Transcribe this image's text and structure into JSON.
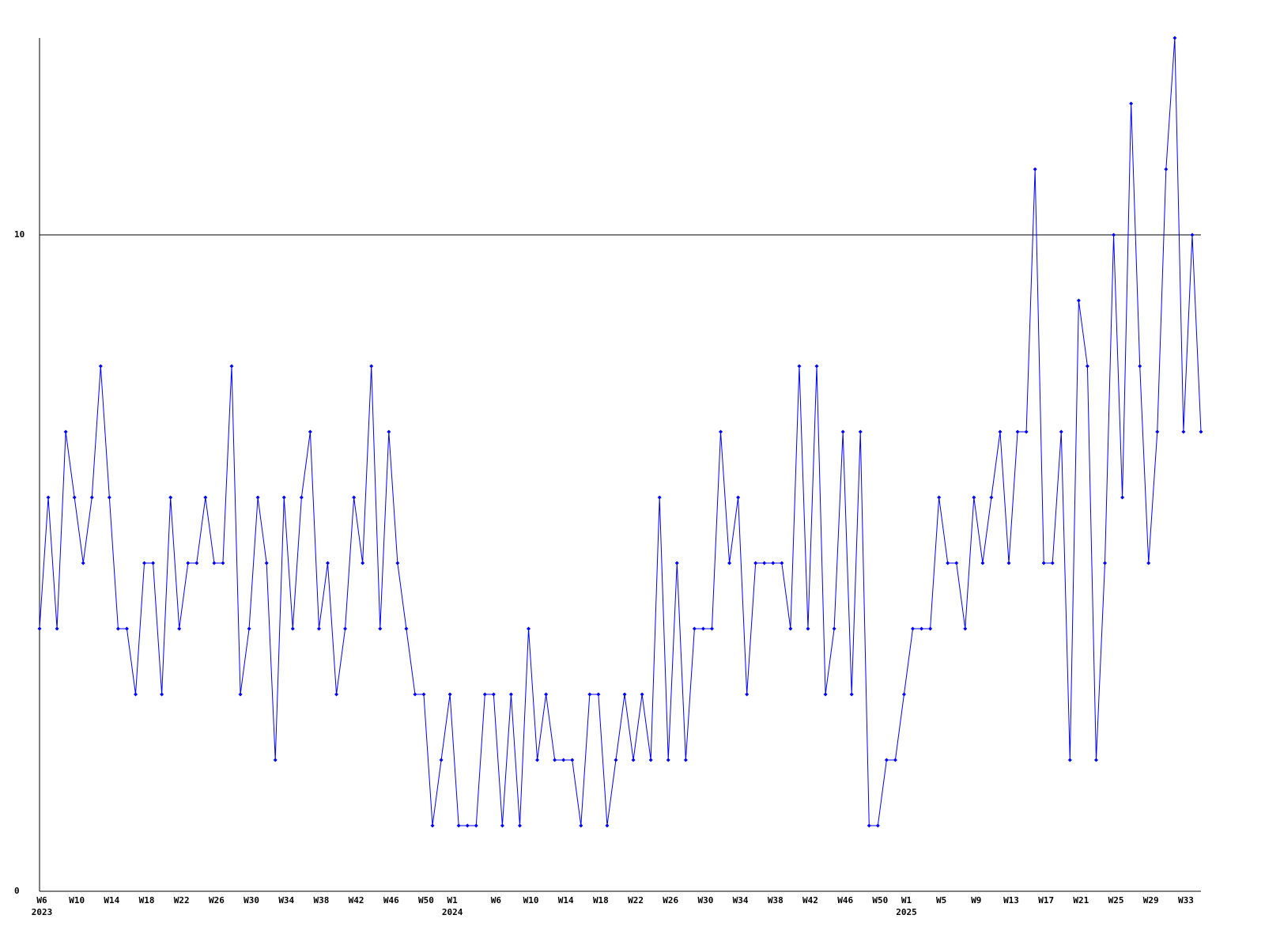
{
  "chart_data": {
    "type": "line",
    "categories": [
      "W6",
      null,
      null,
      null,
      "W10",
      null,
      null,
      null,
      "W14",
      null,
      null,
      null,
      "W18",
      null,
      null,
      null,
      "W22",
      null,
      null,
      null,
      "W26",
      null,
      null,
      null,
      "W30",
      null,
      null,
      null,
      "W34",
      null,
      null,
      null,
      "W38",
      null,
      null,
      null,
      "W42",
      null,
      null,
      null,
      "W46",
      null,
      null,
      null,
      "W50",
      null,
      null,
      "W1",
      null,
      null,
      null,
      null,
      "W6",
      null,
      null,
      null,
      "W10",
      null,
      null,
      null,
      "W14",
      null,
      null,
      null,
      "W18",
      null,
      null,
      null,
      "W22",
      null,
      null,
      null,
      "W26",
      null,
      null,
      null,
      "W30",
      null,
      null,
      null,
      "W34",
      null,
      null,
      null,
      "W38",
      null,
      null,
      null,
      "W42",
      null,
      null,
      null,
      "W46",
      null,
      null,
      null,
      "W50",
      null,
      null,
      "W1",
      null,
      null,
      null,
      "W5",
      null,
      null,
      null,
      "W9",
      null,
      null,
      null,
      "W13",
      null,
      null,
      null,
      "W17",
      null,
      null,
      null,
      "W21",
      null,
      null,
      null,
      "W25",
      null,
      null,
      null,
      "W29",
      null,
      null,
      null,
      "W33",
      null,
      null
    ],
    "year_labels": [
      "2023",
      null,
      null,
      null,
      null,
      null,
      null,
      null,
      null,
      null,
      null,
      null,
      null,
      null,
      null,
      null,
      null,
      null,
      null,
      null,
      null,
      null,
      null,
      null,
      null,
      null,
      null,
      null,
      null,
      null,
      null,
      null,
      null,
      null,
      null,
      null,
      null,
      null,
      null,
      null,
      null,
      null,
      null,
      null,
      null,
      null,
      null,
      "2024",
      null,
      null,
      null,
      null,
      null,
      null,
      null,
      null,
      null,
      null,
      null,
      null,
      null,
      null,
      null,
      null,
      null,
      null,
      null,
      null,
      null,
      null,
      null,
      null,
      null,
      null,
      null,
      null,
      null,
      null,
      null,
      null,
      null,
      null,
      null,
      null,
      null,
      null,
      null,
      null,
      null,
      null,
      null,
      null,
      null,
      null,
      null,
      null,
      null,
      null,
      null,
      "2025",
      null,
      null,
      null,
      null,
      null,
      null,
      null,
      null,
      null,
      null,
      null,
      null,
      null,
      null,
      null,
      null,
      null,
      null,
      null,
      null,
      null,
      null,
      null,
      null,
      null,
      null,
      null,
      null,
      null,
      null,
      null,
      null,
      null,
      null
    ],
    "series": [
      {
        "color": "#0000ff",
        "values": [
          4,
          6,
          4,
          7,
          6,
          5,
          6,
          8,
          6,
          4,
          4,
          3,
          5,
          5,
          3,
          6,
          4,
          5,
          5,
          6,
          5,
          5,
          8,
          3,
          4,
          6,
          5,
          2,
          6,
          4,
          6,
          7,
          4,
          5,
          3,
          4,
          6,
          5,
          8,
          4,
          7,
          5,
          4,
          3,
          3,
          1,
          2,
          3,
          1,
          1,
          1,
          3,
          3,
          1,
          3,
          1,
          4,
          2,
          3,
          2,
          2,
          2,
          1,
          3,
          3,
          1,
          2,
          3,
          2,
          3,
          2,
          6,
          2,
          5,
          2,
          4,
          4,
          4,
          7,
          5,
          6,
          3,
          5,
          5,
          5,
          5,
          4,
          8,
          4,
          8,
          3,
          4,
          7,
          3,
          7,
          1,
          1,
          2,
          2,
          3,
          4,
          4,
          4,
          6,
          5,
          5,
          4,
          6,
          5,
          6,
          7,
          5,
          7,
          7,
          11,
          5,
          5,
          7,
          2,
          9,
          8,
          2,
          5,
          10,
          6,
          12,
          8,
          5,
          7,
          11,
          13,
          7,
          10,
          7
        ]
      }
    ],
    "ylim": [
      0,
      13
    ],
    "yticks": [
      0,
      10
    ],
    "grid": true
  }
}
